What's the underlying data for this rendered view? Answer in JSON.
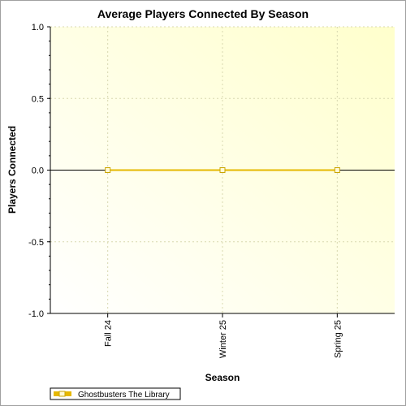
{
  "chart_data": {
    "type": "line",
    "title": "Average Players Connected By Season",
    "xlabel": "Season",
    "ylabel": "Players Connected",
    "categories": [
      "Fall 24",
      "Winter 25",
      "Spring 25"
    ],
    "series": [
      {
        "name": "Ghostbusters The Library",
        "values": [
          0.0,
          0.0,
          0.0
        ],
        "color": "#e6b800"
      }
    ],
    "ylim": [
      -1.0,
      1.0
    ],
    "yticks": [
      "1.0",
      "0.5",
      "0.0",
      "-0.5",
      "-1.0"
    ],
    "ytick_values": [
      1.0,
      0.5,
      0.0,
      -0.5,
      -1.0
    ],
    "grid": true,
    "legend_position": "bottom-left",
    "colors": {
      "plot_background_start": "#ffffff",
      "plot_background_end": "#ffffcc",
      "grid": "#d8d8b0",
      "zero_line": "#000000",
      "series_line": "#e6b800",
      "marker_fill": "#fff9d6",
      "marker_stroke": "#c9a400"
    }
  }
}
